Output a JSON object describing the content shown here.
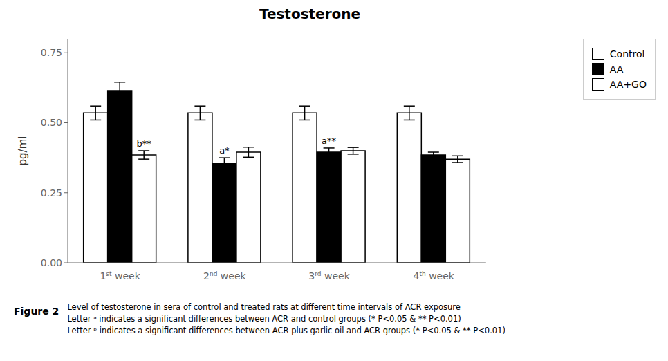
{
  "chart_data": {
    "type": "bar",
    "title": "Testosterone",
    "ylabel": "pg/ml",
    "categories": [
      "1st week",
      "2nd week",
      "3rd week",
      "4th week"
    ],
    "series": [
      {
        "name": "Control",
        "color": "#ffffff",
        "values": [
          0.535,
          0.535,
          0.535,
          0.535
        ],
        "errors": [
          0.025,
          0.025,
          0.025,
          0.025
        ]
      },
      {
        "name": "AA",
        "color": "#000000",
        "values": [
          0.615,
          0.355,
          0.395,
          0.385
        ],
        "errors": [
          0.03,
          0.02,
          0.015,
          0.01
        ]
      },
      {
        "name": "AA+GO",
        "color": "#ffffff",
        "values": [
          0.385,
          0.395,
          0.4,
          0.37
        ],
        "errors": [
          0.015,
          0.018,
          0.012,
          0.012
        ]
      }
    ],
    "annotations": [
      {
        "category": "1st week",
        "series": "AA+GO",
        "text": "b**"
      },
      {
        "category": "2nd week",
        "series": "AA",
        "text": "a*"
      },
      {
        "category": "3rd week",
        "series": "AA",
        "text": "a**"
      }
    ],
    "ylim": [
      0.0,
      0.8
    ],
    "yticks": [
      {
        "value": 0.0,
        "label": "0.00"
      },
      0.25,
      {
        "value": 0.5,
        "label": "0.50"
      },
      0.75
    ],
    "grid": false,
    "legend": "upper right",
    "figure_caption": "Figure 2",
    "caption_lines": [
      "Level of testosterone in sera of control and treated rats at different time intervals of ACR exposure",
      "Letter ᵃ indicates a significant differences between ACR and control groups (* P<0.05 & ** P<0.01)",
      "Letter ᵇ indicates a significant differences between ACR plus garlic oil and ACR groups (* P<0.05 & ** P<0.01)"
    ]
  }
}
